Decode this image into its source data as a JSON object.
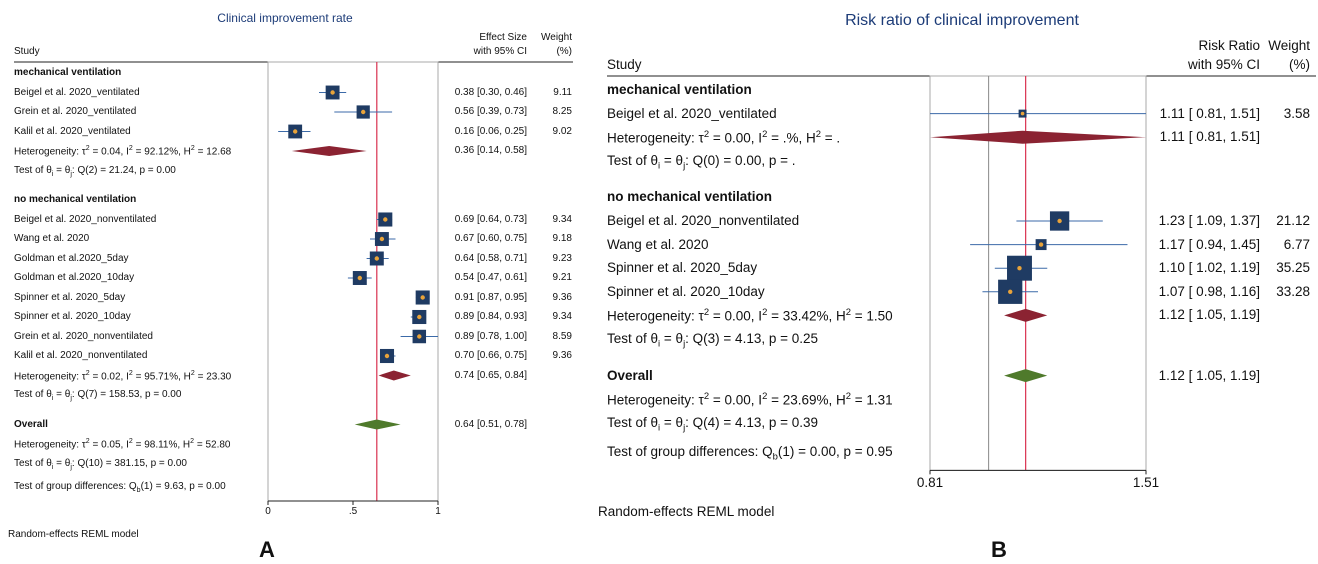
{
  "chart_data": [
    {
      "type": "forest",
      "panel": "A",
      "title": "Clinical improvement rate",
      "columns": {
        "study": "Study",
        "effect": [
          "Effect Size",
          "with 95% CI"
        ],
        "weight": [
          "Weight",
          "(%)"
        ]
      },
      "xlim": [
        0,
        1
      ],
      "ticks": [
        {
          "v": 0,
          "label": "0"
        },
        {
          "v": 0.5,
          "label": ".5"
        },
        {
          "v": 1,
          "label": "1"
        }
      ],
      "reference_line": 0.64,
      "groups": [
        {
          "name": "mechanical ventilation",
          "studies": [
            {
              "name": "Beigel et al. 2020_ventilated",
              "est": 0.38,
              "lo": 0.3,
              "hi": 0.46,
              "ci": "0.38 [0.30, 0.46]",
              "weight": "9.11"
            },
            {
              "name": "Grein et al. 2020_ventilated",
              "est": 0.56,
              "lo": 0.39,
              "hi": 0.73,
              "ci": "0.56 [0.39, 0.73]",
              "weight": "8.25"
            },
            {
              "name": "Kalil et al. 2020_ventilated",
              "est": 0.16,
              "lo": 0.06,
              "hi": 0.25,
              "ci": "0.16 [0.06, 0.25]",
              "weight": "9.02"
            }
          ],
          "heterogeneity": "Heterogeneity: τ² = 0.04, I² = 92.12%, H² = 12.68",
          "pooled": {
            "est": 0.36,
            "lo": 0.14,
            "hi": 0.58,
            "ci": "0.36 [0.14, 0.58]"
          },
          "test": "Test of θᵢ = θⱼ: Q(2) = 21.24, p = 0.00"
        },
        {
          "name": "no mechanical ventilation",
          "studies": [
            {
              "name": "Beigel et al. 2020_nonventilated",
              "est": 0.69,
              "lo": 0.64,
              "hi": 0.73,
              "ci": "0.69 [0.64, 0.73]",
              "weight": "9.34"
            },
            {
              "name": "Wang et al. 2020",
              "est": 0.67,
              "lo": 0.6,
              "hi": 0.75,
              "ci": "0.67 [0.60, 0.75]",
              "weight": "9.18"
            },
            {
              "name": "Goldman et al.2020_5day",
              "est": 0.64,
              "lo": 0.58,
              "hi": 0.71,
              "ci": "0.64 [0.58, 0.71]",
              "weight": "9.23"
            },
            {
              "name": "Goldman et al.2020_10day",
              "est": 0.54,
              "lo": 0.47,
              "hi": 0.61,
              "ci": "0.54 [0.47, 0.61]",
              "weight": "9.21"
            },
            {
              "name": "Spinner et al. 2020_5day",
              "est": 0.91,
              "lo": 0.87,
              "hi": 0.95,
              "ci": "0.91 [0.87, 0.95]",
              "weight": "9.36"
            },
            {
              "name": "Spinner et al. 2020_10day",
              "est": 0.89,
              "lo": 0.84,
              "hi": 0.93,
              "ci": "0.89 [0.84, 0.93]",
              "weight": "9.34"
            },
            {
              "name": "Grein et al. 2020_nonventilated",
              "est": 0.89,
              "lo": 0.78,
              "hi": 1.0,
              "ci": "0.89 [0.78, 1.00]",
              "weight": "8.59"
            },
            {
              "name": "Kalil et al. 2020_nonventilated",
              "est": 0.7,
              "lo": 0.66,
              "hi": 0.75,
              "ci": "0.70 [0.66, 0.75]",
              "weight": "9.36"
            }
          ],
          "heterogeneity": "Heterogeneity: τ² = 0.02, I² = 95.71%, H² = 23.30",
          "pooled": {
            "est": 0.74,
            "lo": 0.65,
            "hi": 0.84,
            "ci": "0.74 [0.65, 0.84]"
          },
          "test": "Test of θᵢ = θⱼ: Q(7) = 158.53, p = 0.00"
        }
      ],
      "overall": {
        "name": "Overall",
        "est": 0.64,
        "lo": 0.51,
        "hi": 0.78,
        "ci": "0.64 [0.51, 0.78]",
        "heterogeneity": "Heterogeneity: τ² = 0.05, I² = 98.11%, H² = 52.80",
        "test": "Test of θᵢ = θⱼ: Q(10) = 381.15, p = 0.00"
      },
      "group_diff": "Test of group differences: Q_b(1) = 9.63, p = 0.00",
      "model": "Random-effects REML model"
    },
    {
      "type": "forest",
      "panel": "B",
      "title": "Risk ratio of clinical improvement",
      "columns": {
        "study": "Study",
        "effect": [
          "Risk Ratio",
          "with 95% CI"
        ],
        "weight": [
          "Weight",
          "(%)"
        ]
      },
      "xlim": [
        0.81,
        1.51
      ],
      "ticks": [
        {
          "v": 0.81,
          "label": "0.81"
        },
        {
          "v": 1.51,
          "label": "1.51"
        }
      ],
      "null_line": 1.0,
      "reference_line": 1.12,
      "groups": [
        {
          "name": "mechanical ventilation",
          "studies": [
            {
              "name": "Beigel et al. 2020_ventilated",
              "est": 1.11,
              "lo": 0.81,
              "hi": 1.51,
              "ci": "1.11 [ 0.81,  1.51]",
              "weight": "3.58"
            }
          ],
          "heterogeneity": "Heterogeneity: τ² = 0.00, I² = .%, H² = .",
          "pooled": {
            "est": 1.11,
            "lo": 0.81,
            "hi": 1.51,
            "ci": "1.11 [ 0.81,  1.51]"
          },
          "test": "Test of θᵢ = θⱼ: Q(0) = 0.00, p = ."
        },
        {
          "name": "no mechanical ventilation",
          "studies": [
            {
              "name": "Beigel et al. 2020_nonventilated",
              "est": 1.23,
              "lo": 1.09,
              "hi": 1.37,
              "ci": "1.23 [ 1.09,  1.37]",
              "weight": "21.12"
            },
            {
              "name": "Wang et al. 2020",
              "est": 1.17,
              "lo": 0.94,
              "hi": 1.45,
              "ci": "1.17 [ 0.94,  1.45]",
              "weight": "6.77"
            },
            {
              "name": "Spinner et al. 2020_5day",
              "est": 1.1,
              "lo": 1.02,
              "hi": 1.19,
              "ci": "1.10 [ 1.02,  1.19]",
              "weight": "35.25"
            },
            {
              "name": "Spinner et al. 2020_10day",
              "est": 1.07,
              "lo": 0.98,
              "hi": 1.16,
              "ci": "1.07 [ 0.98,  1.16]",
              "weight": "33.28"
            }
          ],
          "heterogeneity": "Heterogeneity: τ² = 0.00, I² = 33.42%, H² = 1.50",
          "pooled": {
            "est": 1.12,
            "lo": 1.05,
            "hi": 1.19,
            "ci": "1.12 [ 1.05,  1.19]"
          },
          "test": "Test of θᵢ = θⱼ: Q(3) = 4.13, p = 0.25"
        }
      ],
      "overall": {
        "name": "Overall",
        "est": 1.12,
        "lo": 1.05,
        "hi": 1.19,
        "ci": "1.12 [ 1.05,  1.19]",
        "heterogeneity": "Heterogeneity: τ² = 0.00, I² = 23.69%, H² = 1.31",
        "test": "Test of θᵢ = θⱼ: Q(4) = 4.13, p = 0.39"
      },
      "group_diff": "Test of group differences: Q_b(1) = 0.00, p = 0.95",
      "model": "Random-effects REML model"
    }
  ],
  "colors": {
    "square_fill": "#1f3b63",
    "point": "#e8a33a",
    "ci_line": "#3b6aa8",
    "group_diamond": "#8b2332",
    "overall_diamond": "#4f7a2b",
    "reference_line": "#d9304f",
    "null_line": "#888888",
    "title": "#1d3c78"
  }
}
